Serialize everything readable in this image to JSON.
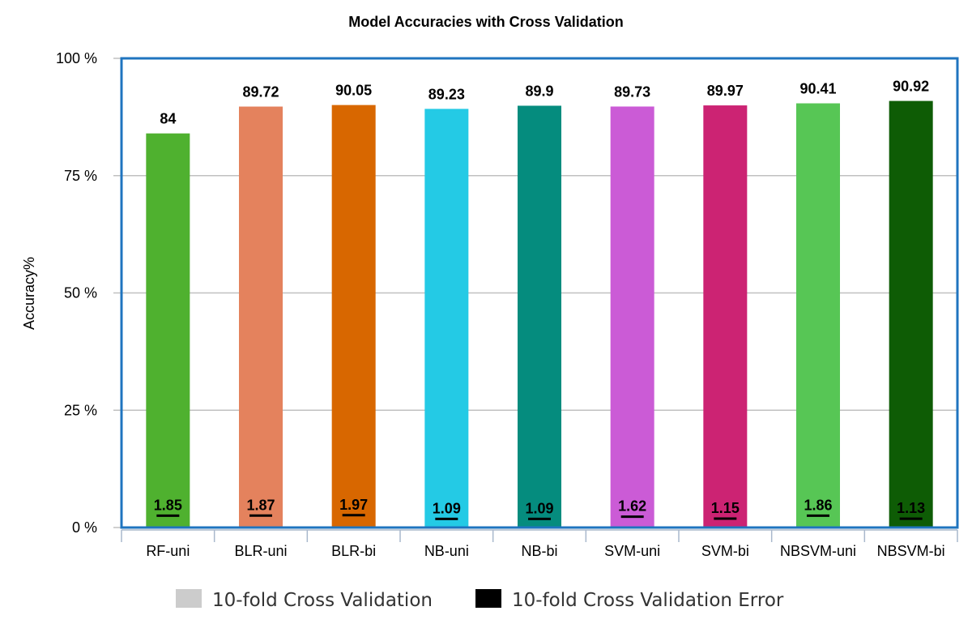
{
  "chart_data": {
    "type": "bar",
    "title": "Model Accuracies with Cross Validation",
    "xlabel": "",
    "ylabel": "Accuracy%",
    "ylim": [
      0,
      100
    ],
    "yticks": [
      {
        "value": 0,
        "label": "0 %"
      },
      {
        "value": 25,
        "label": "25 %"
      },
      {
        "value": 50,
        "label": "50 %"
      },
      {
        "value": 75,
        "label": "75 %"
      },
      {
        "value": 100,
        "label": "100 %"
      }
    ],
    "grid": "horizontal",
    "legend_position": "bottom",
    "categories": [
      "RF-uni",
      "BLR-uni",
      "BLR-bi",
      "NB-uni",
      "NB-bi",
      "SVM-uni",
      "SVM-bi",
      "NBSVM-uni",
      "NBSVM-bi"
    ],
    "series": [
      {
        "name": "10-fold Cross Validation",
        "legend_color": "#cccccc",
        "values": [
          84,
          89.72,
          90.05,
          89.23,
          89.9,
          89.73,
          89.97,
          90.41,
          90.92
        ],
        "labels": [
          "84",
          "89.72",
          "90.05",
          "89.23",
          "89.9",
          "89.73",
          "89.97",
          "90.41",
          "90.92"
        ],
        "colors": [
          "#4fb12f",
          "#e4825d",
          "#d86700",
          "#24cae5",
          "#058c7e",
          "#cb5bd6",
          "#cc2373",
          "#57c655",
          "#0e5c05"
        ]
      },
      {
        "name": "10-fold Cross Validation Error",
        "legend_color": "#000000",
        "values": [
          1.85,
          1.87,
          1.97,
          1.09,
          1.09,
          1.62,
          1.15,
          1.86,
          1.13
        ],
        "labels": [
          "1.85",
          "1.87",
          "1.97",
          "1.09",
          "1.09",
          "1.62",
          "1.15",
          "1.86",
          "1.13"
        ]
      }
    ],
    "colors": {
      "plot_border": "#1f74bf",
      "grid": "#c0c0c0",
      "axis": "#a9b8cc"
    }
  }
}
